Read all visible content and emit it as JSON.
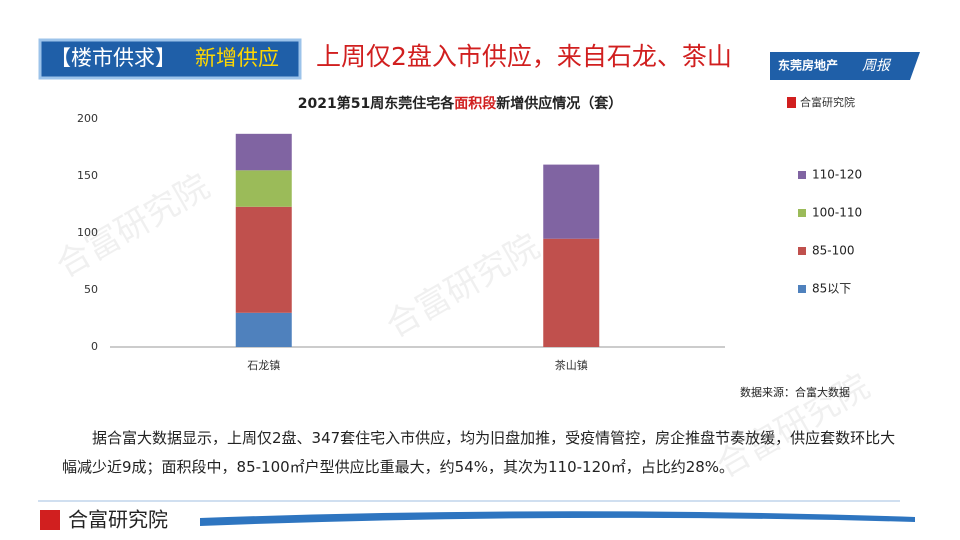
{
  "header": {
    "tag_left": "【楼市供求】",
    "tag_right": "新增供应",
    "headline": "上周仅2盘入市供应，来自石龙、茶山",
    "brand": "东莞房地产",
    "brand_script": "周报"
  },
  "chart_data": {
    "type": "stacked_bar",
    "title": [
      "2021第51周东莞住宅各",
      "面积段",
      "新增供应情况（套）"
    ],
    "logo": "合富研究院",
    "source": "数据来源：合富大数据",
    "categories": [
      "石龙镇",
      "茶山镇"
    ],
    "series": [
      {
        "name": "85以下",
        "color": "#4f81bd",
        "values": [
          30,
          0
        ]
      },
      {
        "name": "85-100",
        "color": "#c0504d",
        "values": [
          93,
          95
        ]
      },
      {
        "name": "100-110",
        "color": "#9bbb59",
        "values": [
          32,
          0
        ]
      },
      {
        "name": "110-120",
        "color": "#8064a2",
        "values": [
          32,
          65
        ]
      }
    ],
    "ylim": [
      0,
      200
    ],
    "yticks": [
      0,
      50,
      100,
      150,
      200
    ],
    "grid": false,
    "legend": "right"
  },
  "watermark": "合富研究院",
  "paragraph": "据合富大数据显示，上周仅2盘、347套住宅入市供应，均为旧盘加推，受疫情管控，房企推盘节奏放缓，供应套数环比大幅减少近9成；面积段中，85-100㎡户型供应比重最大，约54%，其次为110-120㎡，占比约28%。",
  "footer": {
    "brand": "合富研究院"
  }
}
